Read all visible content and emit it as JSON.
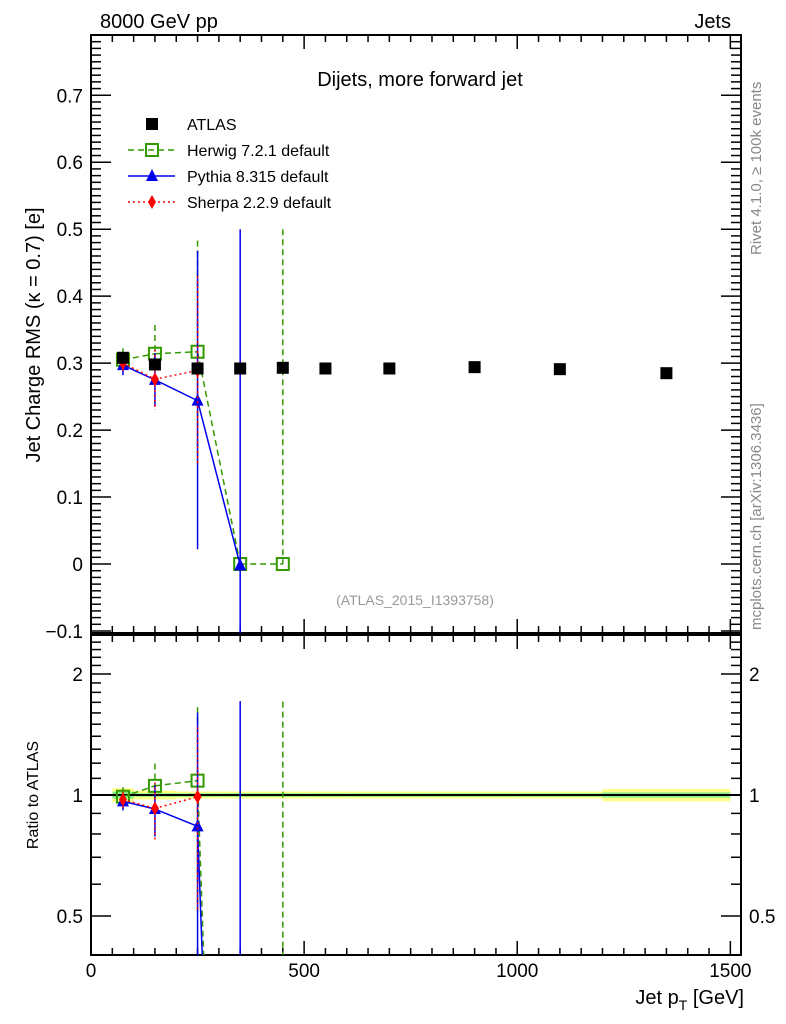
{
  "header": {
    "left": "8000 GeV pp",
    "right": "Jets"
  },
  "side_text": {
    "top": "Rivet 4.1.0, ≥ 100k events",
    "bottom": "mcplots.cern.ch [arXiv:1306.3436]"
  },
  "chart_data": {
    "type": "scatter",
    "title": "Dijets, more forward jet",
    "analysis_tag": "(ATLAS_2015_I1393758)",
    "xlabel": "Jet p_T [GeV]",
    "xlabel_main": "Jet p",
    "xlabel_sub": "T",
    "xlabel_unit": " [GeV]",
    "ylabel": "Jet Charge RMS (κ = 0.7) [e]",
    "ratio_ylabel": "Ratio to ATLAS",
    "xlim": [
      0,
      1525
    ],
    "ylim": [
      -0.103,
      0.79
    ],
    "ratio_ylim": [
      0.4,
      2.5
    ],
    "ratio_scale": "log",
    "xticks": [
      0,
      500,
      1000,
      1500
    ],
    "yticks": [
      -0.1,
      0,
      0.1,
      0.2,
      0.3,
      0.4,
      0.5,
      0.6,
      0.7
    ],
    "ratio_yticks": [
      0.5,
      1,
      2
    ],
    "legend_position": "top-left",
    "x": [
      75,
      150,
      250,
      350,
      450,
      550,
      700,
      900,
      1100,
      1350
    ],
    "bin_edges": [
      50,
      100,
      200,
      300,
      400,
      500,
      600,
      800,
      1000,
      1200,
      1500
    ],
    "series": [
      {
        "name": "ATLAS",
        "color": "#000000",
        "values": [
          0.308,
          0.298,
          0.292,
          0.292,
          0.293,
          0.292,
          0.292,
          0.294,
          0.291,
          0.285
        ],
        "stat_rel_err": [
          0.02,
          0.01,
          0.01,
          0.01,
          0.01,
          0.01,
          0.01,
          0.01,
          0.01,
          0.015
        ],
        "tot_rel_err": [
          0.04,
          0.025,
          0.02,
          0.02,
          0.02,
          0.02,
          0.02,
          0.02,
          0.02,
          0.035
        ]
      },
      {
        "name": "Herwig 7.2.1 default",
        "color": "#339900",
        "values": [
          0.305,
          0.314,
          0.317,
          0.0,
          0.0
        ],
        "err_low": [
          0.29,
          0.27,
          0.15,
          0.0,
          0.0
        ],
        "err_high": [
          0.322,
          0.357,
          0.483,
          0.0,
          0.5
        ]
      },
      {
        "name": "Pythia 8.315 default",
        "color": "#0000ee",
        "values": [
          0.297,
          0.275,
          0.244,
          -0.002
        ],
        "err_low": [
          0.282,
          0.235,
          0.022,
          -0.2
        ],
        "err_high": [
          0.31,
          0.315,
          0.468,
          0.5
        ]
      },
      {
        "name": "Sherpa 2.2.9 default",
        "color": "#ff0000",
        "values": [
          0.3,
          0.276,
          0.289
        ],
        "err_low": [
          0.286,
          0.23,
          0.15
        ],
        "err_high": [
          0.314,
          0.32,
          0.43
        ]
      }
    ]
  }
}
